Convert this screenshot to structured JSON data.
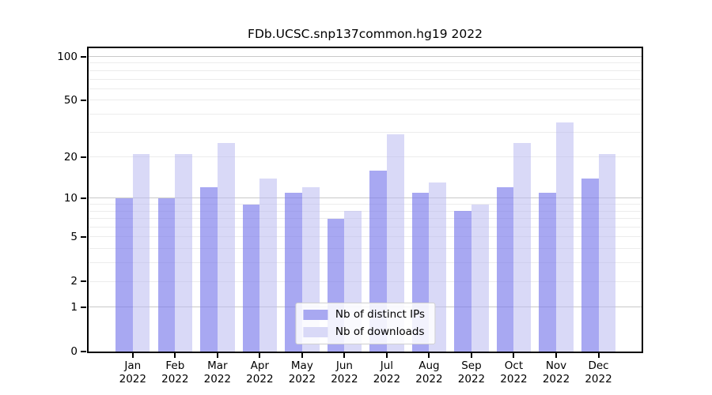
{
  "title": "FDb.UCSC.snp137common.hg19 2022",
  "chart_data": {
    "type": "bar",
    "title": "FDb.UCSC.snp137common.hg19 2022",
    "categories": [
      "Jan",
      "Feb",
      "Mar",
      "Apr",
      "May",
      "Jun",
      "Jul",
      "Aug",
      "Sep",
      "Oct",
      "Nov",
      "Dec"
    ],
    "x_sublabel": "2022",
    "series": [
      {
        "name": "Nb of distinct IPs",
        "values": [
          10,
          10,
          12,
          9,
          11,
          7,
          16,
          11,
          8,
          12,
          11,
          14
        ],
        "color": "#a8a8f1",
        "fill": "rgba(121,121,235,0.65)"
      },
      {
        "name": "Nb of downloads",
        "values": [
          21,
          21,
          25,
          14,
          12,
          8,
          29,
          13,
          9,
          25,
          35,
          21
        ],
        "color": "#d9d9f7",
        "fill": "rgba(186,186,240,0.55)"
      }
    ],
    "xlabel": "",
    "ylabel": "",
    "y_scale": "log1p",
    "ylim": [
      0,
      114
    ],
    "y_ticks": [
      0,
      1,
      2,
      5,
      10,
      20,
      50,
      100
    ],
    "grid": true,
    "grid_major_values": [
      1,
      10,
      100
    ],
    "grid_minor_values": [
      2,
      3,
      4,
      5,
      6,
      7,
      8,
      9,
      20,
      30,
      40,
      50,
      60,
      70,
      80,
      90
    ],
    "legend_position": "lower center"
  },
  "colors": {
    "background": "#ffffff",
    "axis": "#000000",
    "grid_major": "#c9c9c9",
    "grid_minor": "#ececec",
    "legend_border": "#d0d0d0",
    "legend_bg": "rgba(255,255,255,0.85)"
  }
}
